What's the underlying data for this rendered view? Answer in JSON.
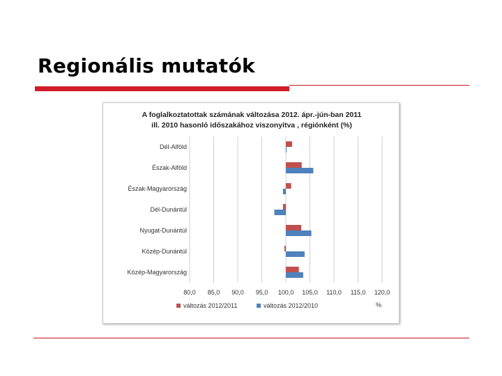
{
  "slide": {
    "title": "Regionális mutatók"
  },
  "chart_data": {
    "type": "bar",
    "orientation": "horizontal",
    "title_line1": "A foglalkoztatottak számának változása 2012. ápr.-jún-ban 2011",
    "title_line2": "ill. 2010 hasonló időszakához viszonyítva , régiónként (%)",
    "categories": [
      "Dél-Alföld",
      "Észak-Alföld",
      "Észak-Magyarország",
      "Dél-Dunántúl",
      "Nyugat-Dunántúl",
      "Közép-Dunántúl",
      "Közép-Magyarország"
    ],
    "series": [
      {
        "name": "változás 2012/2011",
        "color": "#c0504d",
        "values": [
          101.3,
          103.3,
          101.1,
          99.4,
          103.2,
          99.7,
          102.7
        ]
      },
      {
        "name": "változás 2012/2010",
        "color": "#4f81bd",
        "values": [
          100.1,
          105.7,
          99.4,
          97.6,
          105.3,
          103.9,
          103.6
        ]
      }
    ],
    "x_ticks": [
      "80,0",
      "85,0",
      "90,0",
      "95,0",
      "100,0",
      "105,0",
      "110,0",
      "115,0",
      "120,0"
    ],
    "xlim": [
      80,
      120
    ],
    "baseline": 100,
    "unit": "%",
    "legend_position": "bottom",
    "grid": "vertical"
  }
}
